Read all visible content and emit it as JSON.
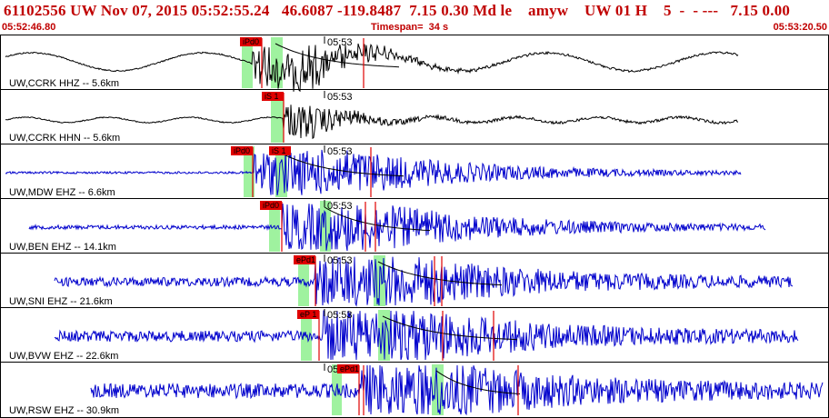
{
  "header": {
    "title": "61102556 UW Nov 07, 2015 05:52:55.24   46.6087 -119.8487  7.15 0.30 Md le    amyw    UW 01 H    5  -  - ---   7.15 0.00",
    "start_time": "05:52:46.80",
    "timespan": "Timespan=  34 s",
    "end_time": "05:53:20.50"
  },
  "colors": {
    "header_text": "#c00000",
    "trace_black": "#000000",
    "trace_blue": "#0000cc",
    "pick_red": "#e00000",
    "window_green": "#9ff29f",
    "decay_curve": "#000000"
  },
  "time_tick_label": "05:53",
  "stations": [
    {
      "label": "UW,CCRK HHZ -- 5.6km",
      "pick_label": "iPd0",
      "pick2_label": "",
      "color": "black"
    },
    {
      "label": "UW,CCRK HHN -- 5.6km",
      "pick_label": "iS 1",
      "pick2_label": "",
      "color": "black"
    },
    {
      "label": "UW,MDW EHZ -- 6.6km",
      "pick_label": "iPd0",
      "pick2_label": "iS 1",
      "color": "blue"
    },
    {
      "label": "UW,BEN EHZ -- 14.1km",
      "pick_label": "iPd0",
      "pick2_label": "",
      "color": "blue"
    },
    {
      "label": "UW,SNI EHZ -- 21.6km",
      "pick_label": "ePd1",
      "pick2_label": "",
      "color": "blue"
    },
    {
      "label": "UW,BVW EHZ -- 22.6km",
      "pick_label": "eP 1",
      "pick2_label": "",
      "color": "blue"
    },
    {
      "label": "UW,RSW EHZ -- 30.9km",
      "pick_label": "ePd1",
      "pick2_label": "",
      "color": "blue"
    }
  ]
}
